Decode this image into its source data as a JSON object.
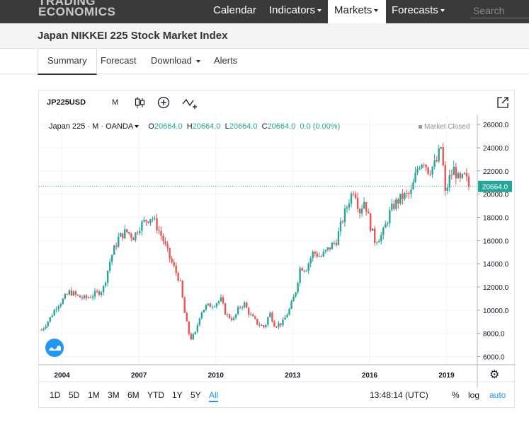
{
  "topbar": {
    "logo_line1": "TRADING",
    "logo_line2": "ECONOMICS",
    "nav": [
      {
        "label": "Calendar",
        "caret": false
      },
      {
        "label": "Indicators",
        "caret": true
      },
      {
        "label": "Markets",
        "caret": true,
        "active": true
      },
      {
        "label": "Forecasts",
        "caret": true
      }
    ],
    "search_placeholder": "Search"
  },
  "page_title": "Japan NIKKEI 225 Stock Market Index",
  "tabs": [
    {
      "label": "Summary",
      "active": true
    },
    {
      "label": "Forecast"
    },
    {
      "label": "Download",
      "caret": true
    },
    {
      "label": "Alerts"
    }
  ],
  "widget": {
    "symbol": "JP225USD",
    "interval": "M",
    "legend": {
      "name": "Japan 225 · M · OANDA",
      "o_label": "O",
      "o": "20664.0",
      "h_label": "H",
      "h": "20664.0",
      "l_label": "L",
      "l": "20664.0",
      "c_label": "C",
      "c": "20664.0",
      "change": "0.0 (0.00%)"
    },
    "market_status": "Market Closed",
    "ranges": [
      "1D",
      "5D",
      "1M",
      "3M",
      "6M",
      "YTD",
      "1Y",
      "5Y",
      "All"
    ],
    "active_range": "All",
    "clock": "13:48:14 (UTC)",
    "scale_options": [
      "%",
      "log",
      "auto"
    ],
    "colors": {
      "up": "#26a69a",
      "down": "#ef5350",
      "accent": "#2196f3",
      "grid": "#f0f3fa"
    }
  },
  "chart_data": {
    "type": "candlestick",
    "y_ticks": [
      6000,
      8000,
      10000,
      12000,
      14000,
      16000,
      18000,
      20000,
      22000,
      24000,
      26000
    ],
    "ylim": [
      5300,
      26800
    ],
    "x_ticks": [
      "2004",
      "2007",
      "2010",
      "2013",
      "2016",
      "2019"
    ],
    "xlim": [
      2003.1,
      2020.2
    ],
    "last_price": "20664.0",
    "last_value": 20664,
    "series": [
      [
        2003.2,
        8300
      ],
      [
        2003.5,
        9200
      ],
      [
        2003.8,
        10400
      ],
      [
        2004.0,
        10800
      ],
      [
        2004.3,
        11600
      ],
      [
        2004.6,
        11200
      ],
      [
        2004.9,
        11000
      ],
      [
        2005.3,
        11400
      ],
      [
        2005.6,
        11800
      ],
      [
        2005.9,
        14500
      ],
      [
        2006.2,
        16200
      ],
      [
        2006.5,
        16800
      ],
      [
        2006.8,
        16300
      ],
      [
        2007.0,
        17200
      ],
      [
        2007.3,
        17800
      ],
      [
        2007.5,
        18100
      ],
      [
        2007.7,
        17200
      ],
      [
        2007.9,
        16300
      ],
      [
        2008.2,
        14500
      ],
      [
        2008.4,
        13500
      ],
      [
        2008.6,
        12500
      ],
      [
        2008.8,
        9500
      ],
      [
        2009.0,
        7500
      ],
      [
        2009.2,
        8000
      ],
      [
        2009.4,
        9800
      ],
      [
        2009.6,
        10300
      ],
      [
        2009.9,
        10500
      ],
      [
        2010.2,
        10900
      ],
      [
        2010.4,
        9600
      ],
      [
        2010.7,
        9200
      ],
      [
        2010.9,
        10200
      ],
      [
        2011.1,
        10600
      ],
      [
        2011.3,
        9700
      ],
      [
        2011.6,
        8900
      ],
      [
        2011.9,
        8500
      ],
      [
        2012.1,
        9800
      ],
      [
        2012.3,
        8700
      ],
      [
        2012.6,
        8900
      ],
      [
        2012.9,
        10200
      ],
      [
        2013.1,
        11500
      ],
      [
        2013.3,
        13800
      ],
      [
        2013.5,
        13500
      ],
      [
        2013.8,
        15000
      ],
      [
        2014.1,
        14600
      ],
      [
        2014.4,
        15300
      ],
      [
        2014.7,
        16000
      ],
      [
        2014.9,
        17500
      ],
      [
        2015.2,
        19500
      ],
      [
        2015.4,
        20600
      ],
      [
        2015.6,
        18500
      ],
      [
        2015.8,
        19500
      ],
      [
        2016.0,
        17500
      ],
      [
        2016.2,
        16000
      ],
      [
        2016.5,
        16500
      ],
      [
        2016.8,
        18500
      ],
      [
        2017.0,
        19200
      ],
      [
        2017.3,
        19800
      ],
      [
        2017.6,
        20000
      ],
      [
        2017.9,
        22500
      ],
      [
        2018.1,
        23000
      ],
      [
        2018.3,
        22000
      ],
      [
        2018.6,
        22700
      ],
      [
        2018.8,
        24200
      ],
      [
        2018.95,
        20000
      ],
      [
        2019.1,
        21300
      ],
      [
        2019.3,
        22200
      ],
      [
        2019.5,
        21000
      ],
      [
        2019.7,
        21500
      ],
      [
        2019.9,
        20664
      ]
    ]
  }
}
